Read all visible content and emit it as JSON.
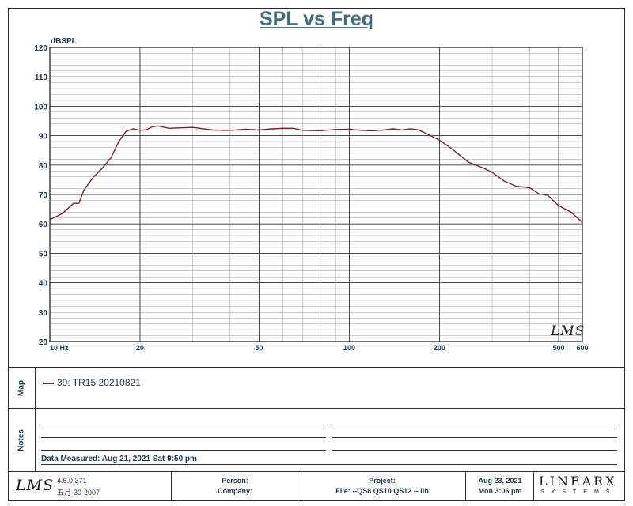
{
  "chart_data": {
    "type": "line",
    "title": "SPL vs Freq",
    "ylabel": "dBSPL",
    "xlabel": "",
    "x_scale": "log",
    "xlim": [
      10,
      600
    ],
    "ylim": [
      20,
      120
    ],
    "y_ticks": [
      20,
      30,
      40,
      50,
      60,
      70,
      80,
      90,
      100,
      110,
      120
    ],
    "x_ticks": [
      {
        "value": 10,
        "label": "10 Hz"
      },
      {
        "value": 20,
        "label": "20"
      },
      {
        "value": 50,
        "label": "50"
      },
      {
        "value": 100,
        "label": "100"
      },
      {
        "value": 200,
        "label": "200"
      },
      {
        "value": 500,
        "label": "500"
      },
      {
        "value": 600,
        "label": "600"
      }
    ],
    "grid": true,
    "series": [
      {
        "name": "39: TR15 20210821",
        "color": "#7a1f22",
        "x": [
          10,
          11,
          12,
          12.5,
          13,
          14,
          15,
          16,
          17,
          18,
          19,
          20,
          21,
          22,
          23,
          25,
          28,
          30,
          35,
          40,
          45,
          50,
          55,
          60,
          65,
          70,
          80,
          90,
          100,
          110,
          120,
          130,
          140,
          150,
          160,
          170,
          180,
          200,
          220,
          250,
          280,
          300,
          330,
          360,
          400,
          430,
          460,
          500,
          550,
          600
        ],
        "y": [
          61.5,
          63.5,
          67,
          67,
          71.5,
          76,
          79,
          82.5,
          88,
          91.5,
          92.3,
          91.8,
          92,
          93,
          93.3,
          92.5,
          92.7,
          92.8,
          91.9,
          91.8,
          92.2,
          91.9,
          92.3,
          92.5,
          92.5,
          91.8,
          91.7,
          92.1,
          92.2,
          91.8,
          91.7,
          91.9,
          92.3,
          91.9,
          92.3,
          92.0,
          90.8,
          88.5,
          85.5,
          81,
          79,
          77.5,
          74.5,
          72.8,
          72.3,
          70.2,
          69.7,
          66.2,
          64,
          60.5
        ]
      }
    ]
  },
  "map": {
    "section_label": "Map",
    "legend_entry": "39: TR15 20210821"
  },
  "notes": {
    "section_label": "Notes",
    "data_measured": "Data Measured: Aug 21, 2021  Sat  9:50 pm"
  },
  "footer": {
    "logo": "LMS",
    "version": "4.6.0.371",
    "build_date": "五月-30-2007",
    "person_label": "Person:",
    "company_label": "Company:",
    "project_label": "Project:",
    "file_line": "File: --QS8  QS10  QS12  --.lib",
    "date": "Aug 23, 2021",
    "day_time": "Mon  3:06 pm",
    "brand": "LINEARX",
    "brand_sub": "SYSTEMS"
  },
  "watermark": "LMS",
  "colors": {
    "curve": "#7a1f22",
    "title": "#3f6e82",
    "text": "#1a3550",
    "grid_major": "#333333",
    "grid_minor": "#9a9a9a"
  }
}
